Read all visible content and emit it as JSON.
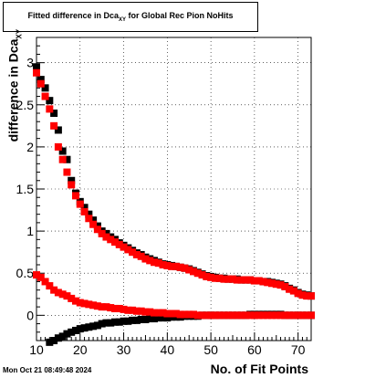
{
  "chart_data": {
    "type": "scatter",
    "title_main": "Fitted difference in Dca",
    "title_sub": "XY",
    "title_tail": " for Global Rec Pion NoHits",
    "xlabel": "No. of Fit Points",
    "ylabel_main": "difference in Dca",
    "ylabel_sub": "XY",
    "xlim": [
      10,
      73
    ],
    "ylim": [
      -0.3,
      3.3
    ],
    "xticks": [
      "10",
      "20",
      "30",
      "40",
      "50",
      "60",
      "70"
    ],
    "yticks": [
      "0",
      "0.5",
      "1",
      "1.5",
      "2",
      "2.5",
      "3"
    ],
    "grid": true,
    "colors": {
      "black": "#000000",
      "red": "#ff0000"
    },
    "series": [
      {
        "color": "black",
        "x": [
          10,
          11,
          12,
          13,
          14,
          15,
          16,
          17,
          18,
          19,
          20,
          21,
          22,
          23,
          24,
          25,
          26,
          27,
          28,
          29,
          30,
          31,
          32,
          33,
          34,
          35,
          36,
          37,
          38,
          39,
          40,
          41,
          42,
          43,
          44,
          45,
          46,
          47,
          48,
          49,
          50,
          51,
          52,
          53,
          54,
          55,
          56,
          57,
          58,
          59,
          60,
          61,
          62,
          63,
          64,
          65,
          66,
          67,
          68,
          69,
          70,
          71,
          72,
          73
        ],
        "y": [
          2.95,
          2.8,
          2.7,
          2.55,
          2.4,
          2.2,
          1.95,
          1.85,
          1.6,
          1.45,
          1.35,
          1.28,
          1.2,
          1.13,
          1.06,
          1.0,
          0.97,
          0.93,
          0.9,
          0.86,
          0.83,
          0.8,
          0.77,
          0.74,
          0.72,
          0.69,
          0.67,
          0.65,
          0.63,
          0.61,
          0.6,
          0.59,
          0.58,
          0.57,
          0.56,
          0.55,
          0.53,
          0.51,
          0.49,
          0.47,
          0.46,
          0.45,
          0.44,
          0.44,
          0.43,
          0.43,
          0.43,
          0.42,
          0.42,
          0.42,
          0.41,
          0.41,
          0.4,
          0.4,
          0.39,
          0.38,
          0.37,
          0.35,
          0.32,
          0.3,
          0.27,
          0.25,
          0.24,
          0.23
        ]
      },
      {
        "color": "red",
        "x": [
          10,
          11,
          12,
          13,
          14,
          15,
          16,
          17,
          18,
          19,
          20,
          21,
          22,
          23,
          24,
          25,
          26,
          27,
          28,
          29,
          30,
          31,
          32,
          33,
          34,
          35,
          36,
          37,
          38,
          39,
          40,
          41,
          42,
          43,
          44,
          45,
          46,
          47,
          48,
          49,
          50,
          51,
          52,
          53,
          54,
          55,
          56,
          57,
          58,
          59,
          60,
          61,
          62,
          63,
          64,
          65,
          66,
          67,
          68,
          69,
          70,
          71,
          72,
          73
        ],
        "y": [
          2.88,
          2.75,
          2.6,
          2.45,
          2.25,
          2.0,
          1.85,
          1.7,
          1.55,
          1.42,
          1.32,
          1.23,
          1.15,
          1.08,
          1.02,
          0.97,
          0.93,
          0.9,
          0.87,
          0.84,
          0.81,
          0.78,
          0.75,
          0.72,
          0.7,
          0.67,
          0.65,
          0.63,
          0.62,
          0.6,
          0.59,
          0.58,
          0.58,
          0.57,
          0.56,
          0.54,
          0.52,
          0.5,
          0.48,
          0.46,
          0.45,
          0.44,
          0.44,
          0.43,
          0.43,
          0.43,
          0.42,
          0.42,
          0.42,
          0.42,
          0.41,
          0.41,
          0.4,
          0.39,
          0.38,
          0.37,
          0.36,
          0.34,
          0.31,
          0.29,
          0.26,
          0.24,
          0.23,
          0.23
        ]
      },
      {
        "color": "black",
        "x": [
          13,
          14,
          15,
          16,
          17,
          18,
          19,
          20,
          21,
          22,
          23,
          24,
          25,
          26,
          27,
          28,
          29,
          30,
          31,
          32,
          33,
          34,
          35,
          36,
          37,
          38,
          39,
          40,
          41,
          42,
          43,
          44,
          45,
          46,
          47,
          48,
          49,
          50,
          51,
          52,
          53,
          54,
          55,
          56,
          57,
          58,
          59,
          60,
          61,
          62,
          63,
          64,
          65,
          66,
          67,
          68,
          69,
          70,
          71,
          72,
          73
        ],
        "y": [
          -0.32,
          -0.3,
          -0.27,
          -0.25,
          -0.22,
          -0.2,
          -0.18,
          -0.16,
          -0.15,
          -0.14,
          -0.13,
          -0.12,
          -0.1,
          -0.09,
          -0.09,
          -0.08,
          -0.08,
          -0.07,
          -0.07,
          -0.06,
          -0.06,
          -0.05,
          -0.05,
          -0.04,
          -0.04,
          -0.03,
          -0.03,
          -0.03,
          -0.02,
          -0.02,
          -0.02,
          -0.01,
          -0.01,
          -0.01,
          -0.01,
          0.0,
          0.0,
          0.0,
          0.0,
          0.0,
          0.0,
          0.0,
          0.0,
          0.0,
          0.0,
          0.0,
          0.01,
          0.01,
          0.01,
          0.01,
          0.01,
          0.01,
          0.01,
          0.01,
          0.0,
          0.0,
          0.0,
          0.0,
          0.0,
          0.0,
          0.0
        ]
      },
      {
        "color": "red",
        "x": [
          10,
          11,
          12,
          13,
          14,
          15,
          16,
          17,
          18,
          19,
          20,
          21,
          22,
          23,
          24,
          25,
          26,
          27,
          28,
          29,
          30,
          31,
          32,
          33,
          34,
          35,
          36,
          37,
          38,
          39,
          40,
          41,
          42,
          43,
          44,
          45,
          46,
          47,
          48,
          49,
          50,
          51,
          52,
          53,
          54,
          55,
          56,
          57,
          58,
          59,
          60,
          61,
          62,
          63,
          64,
          65,
          66,
          67,
          68,
          69,
          70,
          71,
          72,
          73
        ],
        "y": [
          0.48,
          0.45,
          0.4,
          0.35,
          0.3,
          0.27,
          0.25,
          0.23,
          0.2,
          0.17,
          0.15,
          0.14,
          0.13,
          0.12,
          0.11,
          0.1,
          0.1,
          0.09,
          0.08,
          0.08,
          0.07,
          0.06,
          0.06,
          0.05,
          0.05,
          0.04,
          0.04,
          0.03,
          0.03,
          0.03,
          0.02,
          0.02,
          0.02,
          0.01,
          0.01,
          0.01,
          0.01,
          0.0,
          0.0,
          0.0,
          0.0,
          0.0,
          0.0,
          0.0,
          0.0,
          0.0,
          0.0,
          0.0,
          0.0,
          0.0,
          0.0,
          0.0,
          0.0,
          0.0,
          0.0,
          0.0,
          0.0,
          0.0,
          0.0,
          0.0,
          0.0,
          0.0,
          0.0,
          0.0
        ]
      }
    ]
  },
  "footer": {
    "timestamp": "Mon Oct 21 08:49:48 2024"
  }
}
